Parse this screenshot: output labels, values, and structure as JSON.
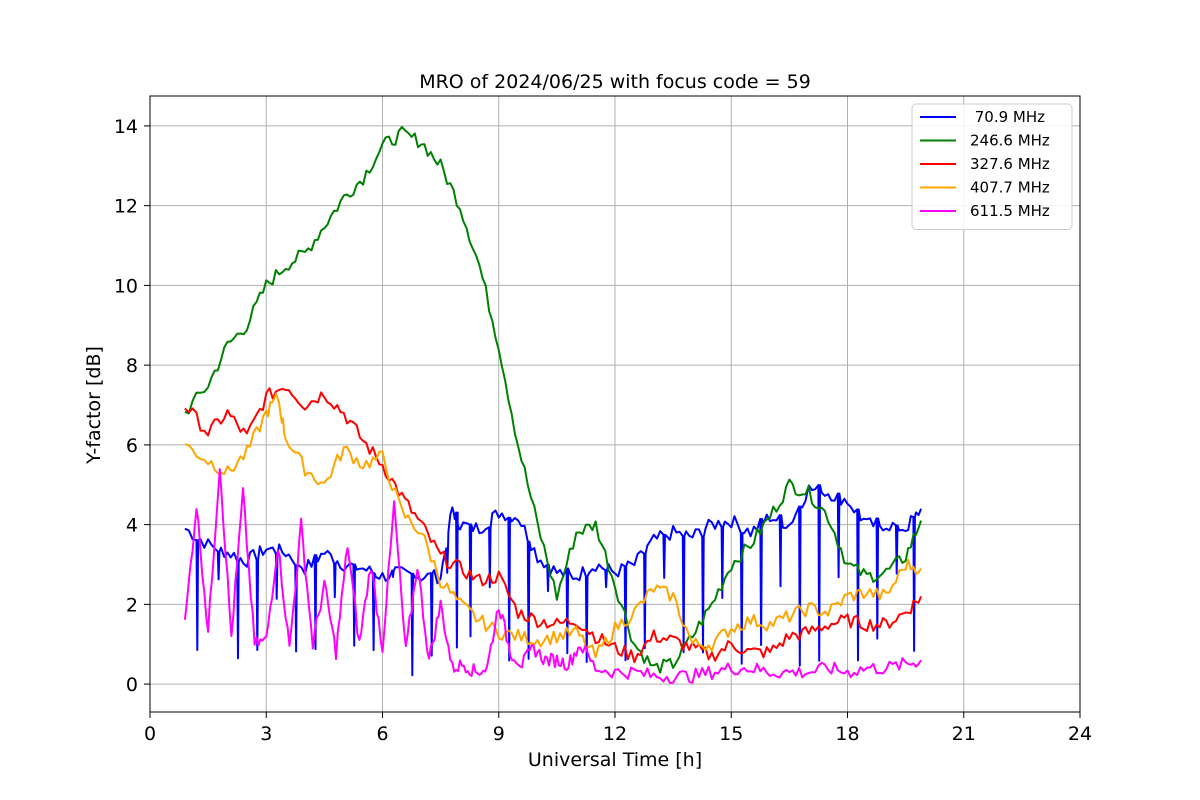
{
  "chart_data": {
    "type": "line",
    "title": "MRO of 2024/06/25 with focus code = 59",
    "xlabel": "Universal Time [h]",
    "ylabel": "Y-factor [dB]",
    "xlim": [
      0,
      24
    ],
    "ylim": [
      -0.7,
      14.75
    ],
    "xticks": [
      0,
      3,
      6,
      9,
      12,
      15,
      18,
      21,
      24
    ],
    "yticks": [
      0,
      2,
      4,
      6,
      8,
      10,
      12,
      14
    ],
    "grid": true,
    "legend_position": "top-right",
    "series": [
      {
        "name": " 70.9 MHz",
        "color": "#0000ff",
        "x": [
          0.9,
          1.5,
          2.0,
          2.5,
          3.0,
          3.5,
          4.0,
          4.5,
          5.0,
          5.5,
          6.0,
          6.5,
          7.0,
          7.5,
          7.8,
          8.0,
          8.5,
          9.0,
          9.5,
          10.0,
          10.5,
          11.0,
          11.5,
          12.0,
          12.5,
          13.0,
          13.5,
          14.0,
          14.5,
          15.0,
          15.5,
          16.0,
          16.5,
          17.0,
          17.5,
          18.0,
          18.5,
          19.0,
          19.5,
          19.9
        ],
        "values": [
          3.9,
          3.5,
          3.3,
          3.1,
          3.4,
          3.3,
          2.9,
          3.3,
          3.0,
          2.9,
          2.7,
          2.8,
          2.7,
          2.7,
          4.4,
          4.0,
          3.9,
          4.3,
          4.2,
          3.2,
          2.8,
          2.7,
          3.0,
          2.8,
          3.0,
          3.6,
          3.8,
          3.7,
          4.0,
          4.1,
          3.8,
          4.2,
          4.0,
          4.9,
          4.8,
          4.6,
          4.0,
          4.0,
          3.9,
          4.4
        ],
        "dropouts": [
          0.5,
          2.0,
          0.2
        ]
      },
      {
        "name": "246.6 MHz",
        "color": "#008000",
        "x": [
          0.9,
          1.5,
          2.0,
          2.5,
          3.0,
          3.5,
          4.0,
          4.5,
          5.0,
          5.5,
          6.0,
          6.5,
          7.0,
          7.5,
          8.0,
          8.5,
          9.0,
          9.5,
          10.0,
          10.5,
          11.0,
          11.5,
          12.0,
          12.5,
          13.0,
          13.5,
          14.0,
          14.5,
          15.0,
          15.5,
          16.0,
          16.5,
          17.0,
          17.5,
          18.0,
          18.5,
          19.0,
          19.5,
          19.9
        ],
        "values": [
          6.8,
          7.5,
          8.5,
          9.0,
          10.0,
          10.5,
          10.8,
          11.5,
          12.2,
          12.7,
          13.5,
          13.8,
          13.6,
          13.0,
          12.0,
          10.5,
          8.5,
          6.0,
          4.0,
          2.2,
          3.8,
          4.0,
          2.5,
          1.0,
          0.4,
          0.5,
          1.2,
          2.0,
          3.0,
          3.5,
          4.2,
          5.0,
          4.8,
          4.2,
          3.0,
          2.7,
          2.8,
          3.2,
          4.1
        ]
      },
      {
        "name": "327.6 MHz",
        "color": "#ff0000",
        "x": [
          0.9,
          1.5,
          2.0,
          2.5,
          3.0,
          3.5,
          4.0,
          4.5,
          5.0,
          5.5,
          6.0,
          6.5,
          7.0,
          7.5,
          8.0,
          8.5,
          9.0,
          9.5,
          10.0,
          10.5,
          11.0,
          11.5,
          12.0,
          12.5,
          13.0,
          13.5,
          14.0,
          14.5,
          15.0,
          15.5,
          16.0,
          16.5,
          17.0,
          17.5,
          18.0,
          18.5,
          19.0,
          19.5,
          19.9
        ],
        "values": [
          7.0,
          6.3,
          6.8,
          6.2,
          7.2,
          7.5,
          7.0,
          7.3,
          6.8,
          6.1,
          5.5,
          4.7,
          4.0,
          3.2,
          2.9,
          2.6,
          2.7,
          1.8,
          1.6,
          1.5,
          1.6,
          1.2,
          0.9,
          0.7,
          1.2,
          1.1,
          0.9,
          0.7,
          1.0,
          0.8,
          0.8,
          1.2,
          1.3,
          1.5,
          1.6,
          1.5,
          1.5,
          1.8,
          2.2
        ]
      },
      {
        "name": "407.7 MHz",
        "color": "#ffa500",
        "x": [
          0.9,
          1.5,
          2.0,
          2.5,
          3.0,
          3.3,
          3.5,
          4.0,
          4.5,
          5.0,
          5.5,
          6.0,
          6.5,
          7.0,
          7.5,
          8.0,
          8.5,
          9.0,
          9.5,
          10.0,
          10.5,
          11.0,
          11.5,
          12.0,
          12.5,
          13.0,
          13.5,
          14.0,
          14.5,
          15.0,
          15.5,
          16.0,
          16.5,
          17.0,
          17.5,
          18.0,
          18.5,
          19.0,
          19.5,
          19.9
        ],
        "values": [
          6.0,
          5.6,
          5.3,
          5.8,
          6.8,
          7.2,
          6.2,
          5.4,
          5.0,
          5.9,
          5.5,
          5.7,
          4.3,
          3.8,
          2.6,
          2.0,
          1.6,
          1.3,
          1.2,
          1.1,
          1.2,
          1.3,
          0.7,
          1.4,
          1.8,
          2.4,
          2.2,
          1.0,
          1.0,
          1.4,
          1.6,
          1.5,
          1.7,
          1.9,
          1.8,
          2.2,
          2.3,
          2.2,
          3.0,
          2.9
        ]
      },
      {
        "name": "611.5 MHz",
        "color": "#ff00ff",
        "x": [
          0.9,
          1.2,
          1.5,
          1.8,
          2.1,
          2.4,
          2.7,
          3.0,
          3.3,
          3.6,
          3.9,
          4.2,
          4.5,
          4.8,
          5.1,
          5.4,
          5.7,
          6.0,
          6.3,
          6.6,
          6.9,
          7.2,
          7.5,
          7.8,
          8.1,
          8.4,
          8.7,
          9.0,
          9.3,
          9.6,
          9.9,
          10.2,
          10.5,
          10.8,
          11.1,
          11.5,
          12.0,
          12.5,
          13.0,
          13.5,
          14.0,
          14.5,
          15.0,
          15.5,
          16.0,
          16.5,
          17.0,
          17.5,
          18.0,
          18.5,
          19.0,
          19.5,
          19.9
        ],
        "values": [
          1.5,
          4.5,
          1.3,
          5.5,
          1.2,
          4.8,
          1.0,
          1.1,
          3.5,
          0.9,
          4.0,
          1.0,
          2.5,
          0.8,
          3.5,
          1.0,
          3.0,
          0.9,
          4.5,
          0.8,
          3.0,
          0.6,
          2.0,
          0.4,
          0.5,
          0.3,
          0.4,
          2.0,
          0.8,
          0.5,
          0.9,
          0.6,
          0.6,
          0.5,
          1.0,
          0.4,
          0.3,
          0.3,
          0.2,
          0.2,
          0.2,
          0.3,
          0.4,
          0.4,
          0.3,
          0.3,
          0.3,
          0.4,
          0.3,
          0.4,
          0.4,
          0.5,
          0.6
        ]
      }
    ]
  }
}
